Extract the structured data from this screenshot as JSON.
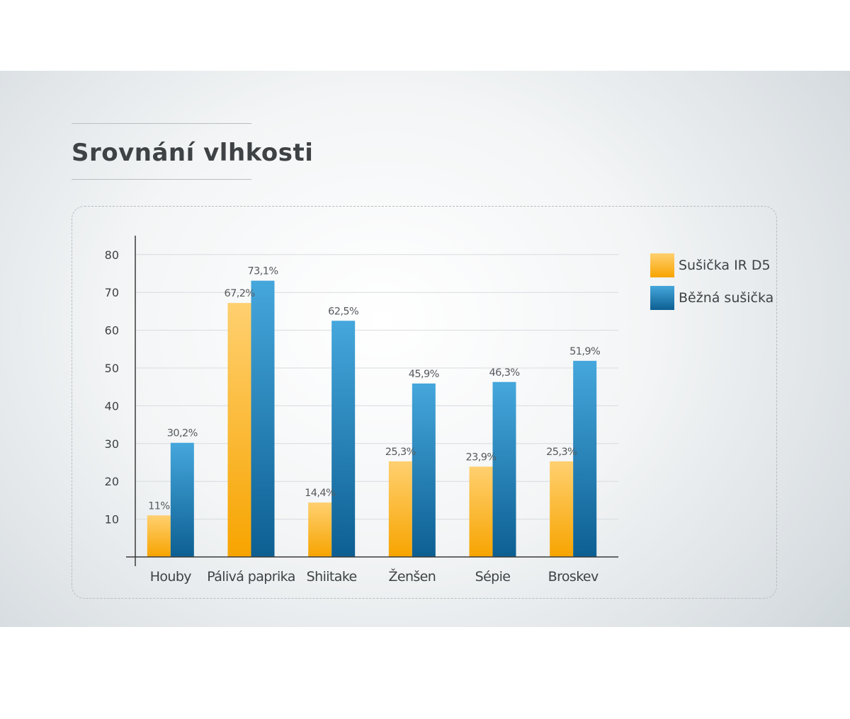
{
  "title": "Srovnání vlhkosti",
  "colors": {
    "series1": "#f7a400",
    "series1_light": "#ffd070",
    "series2": "#0d5f92",
    "series2_light": "#45a7dc",
    "grid": "#d8dcdf",
    "axis": "#3a3a3a",
    "text": "#3f4245"
  },
  "chart_data": {
    "type": "bar",
    "title": "",
    "xlabel": "",
    "ylabel": "",
    "categories": [
      "Houby",
      "Pálivá paprika",
      "Shiitake",
      "Ženšen",
      "Sépie",
      "Broskev"
    ],
    "series": [
      {
        "name": "Sušička IR D5",
        "values": [
          11,
          67.2,
          14.4,
          25.3,
          23.9,
          25.3
        ],
        "labels": [
          "11%",
          "67,2%",
          "14,4%",
          "25,3%",
          "23,9%",
          "25,3%"
        ]
      },
      {
        "name": "Běžná sušička",
        "values": [
          30.2,
          73.1,
          62.5,
          45.9,
          46.3,
          51.9
        ],
        "labels": [
          "30,2%",
          "73,1%",
          "62,5%",
          "45,9%",
          "46,3%",
          "51,9%"
        ]
      }
    ],
    "yticks": [
      "10",
      "20",
      "30",
      "40",
      "50",
      "60",
      "70",
      "80"
    ],
    "ylim": [
      0,
      80
    ],
    "grid": true,
    "legend_position": "right"
  }
}
